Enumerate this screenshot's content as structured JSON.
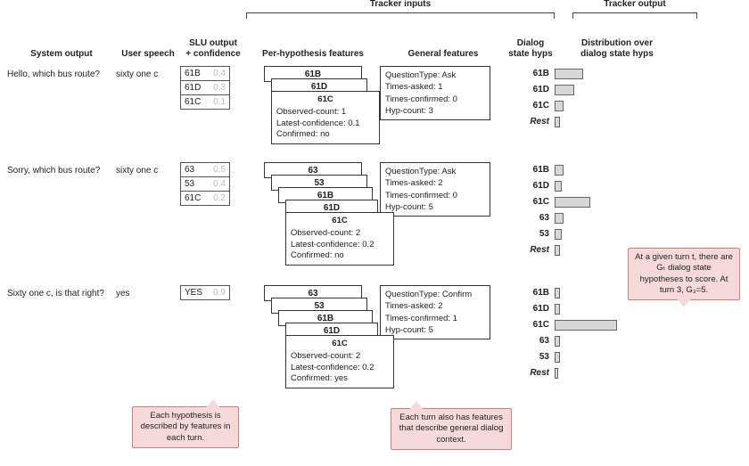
{
  "headers": {
    "system": "System output",
    "user": "User speech",
    "slu": "SLU output\n+ confidence",
    "tracker_inputs": "Tracker inputs",
    "perhyp": "Per-hypothesis features",
    "gen": "General features",
    "hyps": "Dialog\nstate hyps",
    "tracker_output": "Tracker output",
    "dist": "Distribution over\ndialog state hyps"
  },
  "turns": [
    {
      "system": "Hello, which bus route?",
      "user": "sixty one c",
      "slu": [
        {
          "label": "61B",
          "conf": "0.4"
        },
        {
          "label": "61D",
          "conf": "0.3"
        },
        {
          "label": "61C",
          "conf": "0.1"
        }
      ],
      "stack": [
        "61B",
        "61D"
      ],
      "detail": {
        "title": "61C",
        "lines": [
          "Observed-count: 1",
          "Latest-confidence: 0.1",
          "Confirmed: no"
        ]
      },
      "stack_height": 70,
      "gen": [
        "QuestionType: Ask",
        "Times-asked: 1",
        "Times-confirmed: 0",
        "Hyp-count: 3"
      ],
      "hyps": [
        "61B",
        "61D",
        "61C",
        "Rest"
      ],
      "bars": [
        32,
        22,
        10,
        6
      ],
      "bar_colors": [
        "#d7d7d7",
        "#d7d7d7",
        "#d7d7d7",
        "#d7d7d7"
      ]
    },
    {
      "system": "Sorry, which bus route?",
      "user": "sixty one c",
      "slu": [
        {
          "label": "63",
          "conf": "0.5"
        },
        {
          "label": "53",
          "conf": "0.4"
        },
        {
          "label": "61C",
          "conf": "0.2"
        }
      ],
      "stack": [
        "63",
        "53",
        "61B",
        "61D"
      ],
      "detail": {
        "title": "61C",
        "lines": [
          "Observed-count: 2",
          "Latest-confidence: 0.2",
          "Confirmed: no"
        ]
      },
      "stack_height": 100,
      "gen": [
        "QuestionType: Ask",
        "Times-asked: 2",
        "Times-confirmed: 0",
        "Hyp-count: 5"
      ],
      "hyps": [
        "61B",
        "61D",
        "61C",
        "63",
        "53",
        "Rest"
      ],
      "bars": [
        10,
        8,
        40,
        10,
        8,
        6
      ],
      "bar_colors": [
        "#d7d7d7",
        "#d7d7d7",
        "#d7d7d7",
        "#d7d7d7",
        "#d7d7d7",
        "#d7d7d7"
      ]
    },
    {
      "system": "Sixty one c, is that right?",
      "user": "yes",
      "slu": [
        {
          "label": "YES",
          "conf": "0.9"
        }
      ],
      "stack": [
        "63",
        "53",
        "61B",
        "61D"
      ],
      "detail": {
        "title": "61C",
        "lines": [
          "Observed-count: 2",
          "Latest-confidence: 0.2",
          "Confirmed: yes"
        ]
      },
      "stack_height": 100,
      "gen": [
        "QuestionType: Confirm",
        "Times-asked: 2",
        "Times-confirmed: 1",
        "Hyp-count: 5"
      ],
      "hyps": [
        "61B",
        "61D",
        "61C",
        "63",
        "53",
        "Rest"
      ],
      "bars": [
        6,
        6,
        70,
        6,
        6,
        4
      ],
      "bar_colors": [
        "#d7d7d7",
        "#d7d7d7",
        "#d7d7d7",
        "#d7d7d7",
        "#d7d7d7",
        "#d7d7d7"
      ]
    }
  ],
  "callouts": {
    "right": "At a given turn t, there are Gₜ dialog state hypotheses to score. At turn 3, G₃=5.",
    "left": "Each hypothesis is described by features in each turn.",
    "mid": "Each turn also has features that describe general dialog context."
  },
  "style": {
    "bg": "#ffffff",
    "border": "#333333",
    "callout_bg": "#f6dada",
    "callout_border": "#cc7e7e",
    "bar_fill": "#d7d7d7",
    "bar_border": "#666666",
    "conf_color": "#bdbdbd"
  }
}
